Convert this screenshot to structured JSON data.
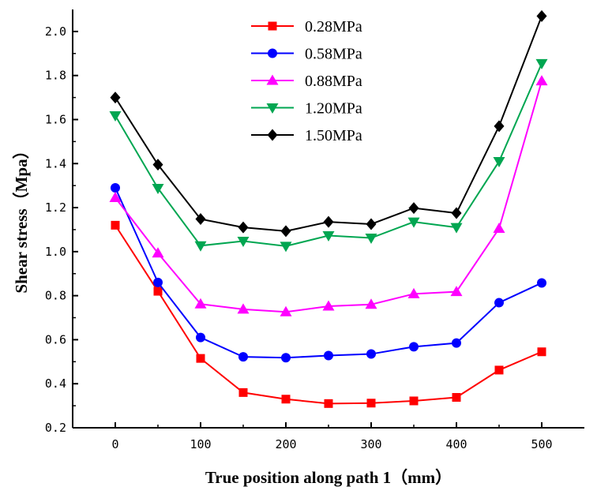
{
  "chart_data": {
    "type": "line",
    "title": "",
    "xlabel": "True position along path 1（mm）",
    "ylabel": "Shear stress（Mpa）",
    "xlim": [
      -50,
      550
    ],
    "ylim": [
      0.2,
      2.1
    ],
    "x": [
      0,
      50,
      100,
      150,
      200,
      250,
      300,
      350,
      400,
      450,
      500
    ],
    "xticks": [
      0,
      100,
      200,
      300,
      400,
      500
    ],
    "yticks": [
      0.2,
      0.4,
      0.6,
      0.8,
      1.0,
      1.2,
      1.4,
      1.6,
      1.8,
      2.0
    ],
    "ytick_labels": [
      "0.2",
      "0.4",
      "0.6",
      "0.8",
      "1.0",
      "1.2",
      "1.4",
      "1.6",
      "1.8",
      "2.0"
    ],
    "legend_position": "top-center",
    "series": [
      {
        "name": "0.28MPa",
        "color": "#ff0000",
        "marker": "square",
        "values": [
          1.12,
          0.82,
          0.515,
          0.36,
          0.33,
          0.31,
          0.312,
          0.322,
          0.338,
          0.462,
          0.545
        ]
      },
      {
        "name": "0.58MPa",
        "color": "#0000ff",
        "marker": "circle",
        "values": [
          1.29,
          0.86,
          0.61,
          0.522,
          0.518,
          0.528,
          0.535,
          0.568,
          0.585,
          0.768,
          0.858
        ]
      },
      {
        "name": "0.88MPa",
        "color": "#ff00ff",
        "marker": "triangle-up",
        "values": [
          1.245,
          0.993,
          0.762,
          0.738,
          0.726,
          0.752,
          0.76,
          0.808,
          0.818,
          1.105,
          1.775
        ]
      },
      {
        "name": "1.20MPa",
        "color": "#00a651",
        "marker": "triangle-down",
        "values": [
          1.618,
          1.288,
          1.027,
          1.048,
          1.025,
          1.073,
          1.062,
          1.135,
          1.11,
          1.41,
          1.855
        ]
      },
      {
        "name": "1.50MPa",
        "color": "#000000",
        "marker": "diamond",
        "values": [
          1.7,
          1.395,
          1.148,
          1.11,
          1.093,
          1.135,
          1.125,
          1.198,
          1.175,
          1.57,
          2.07
        ]
      }
    ]
  }
}
